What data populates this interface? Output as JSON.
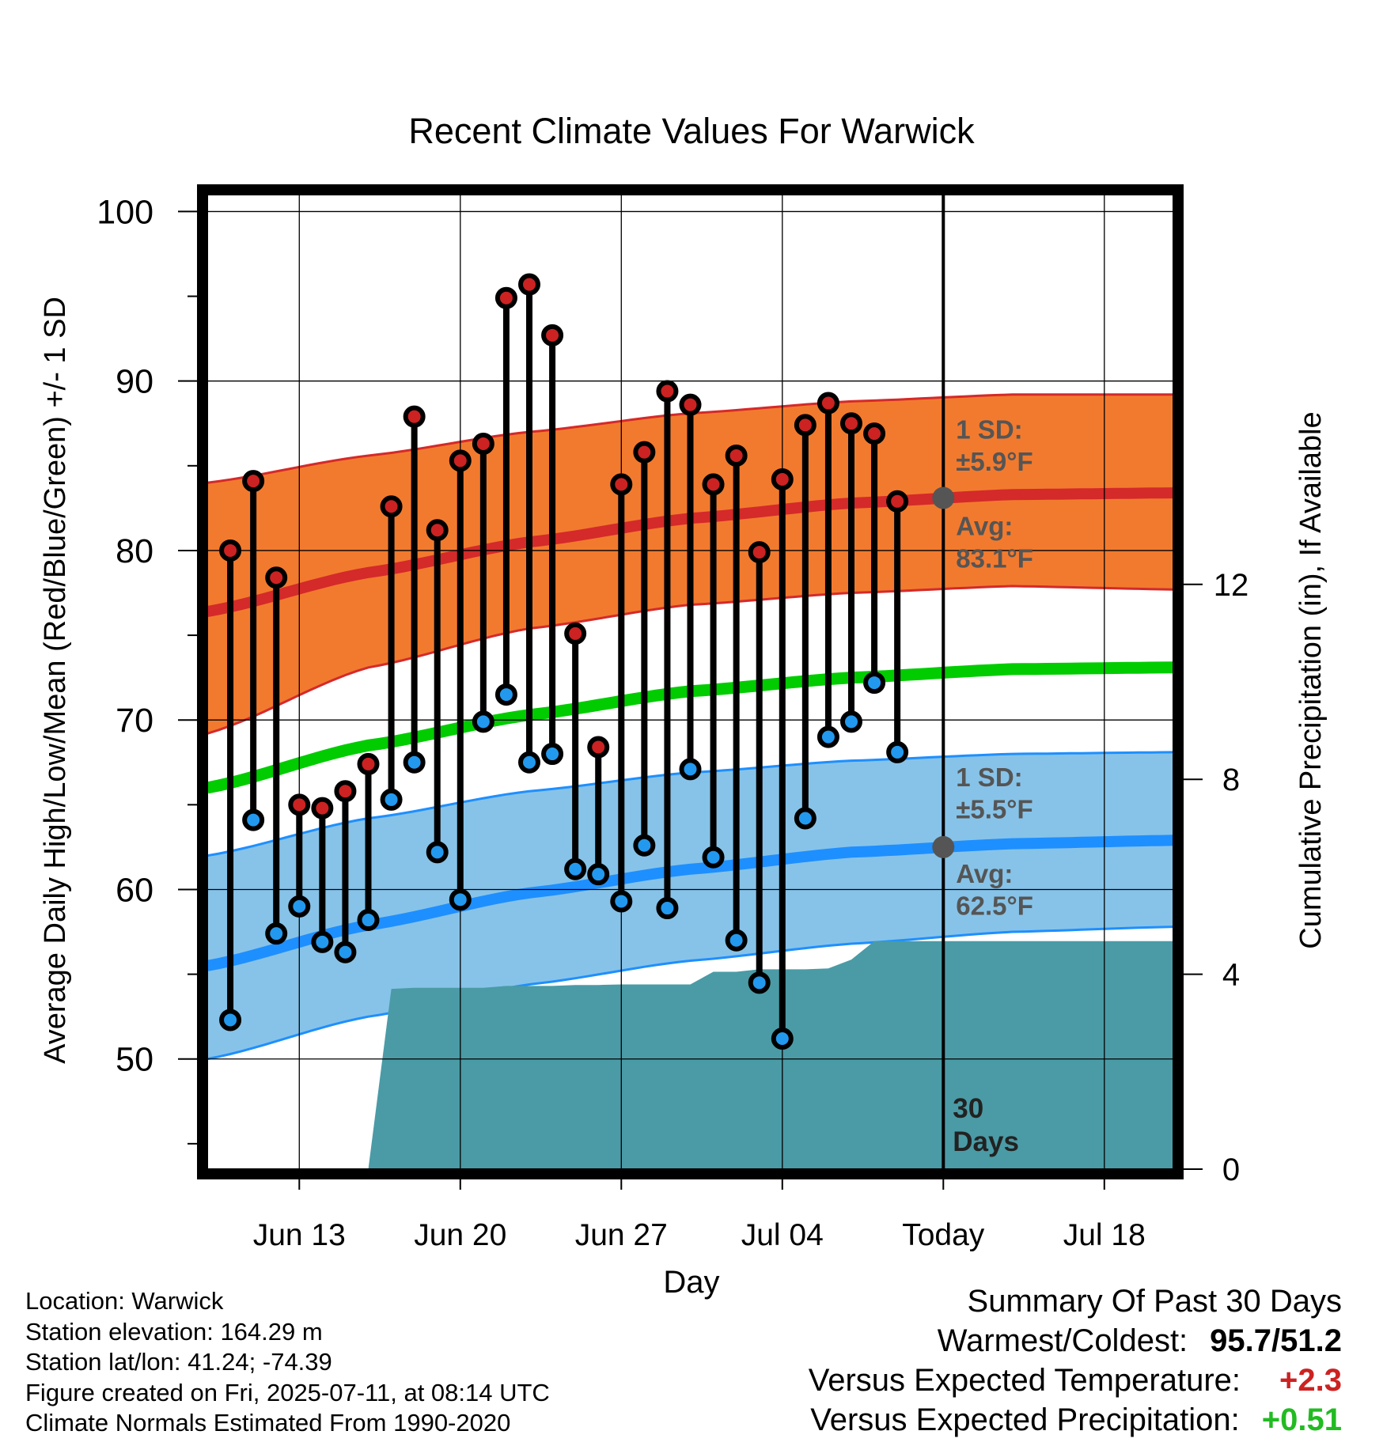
{
  "chart_data": {
    "type": "line",
    "title": "Recent Climate Values For Warwick",
    "xlabel": "Day",
    "ylabel": "Average Daily High/Low/Mean (Red/Blue/Green) +/- 1 SD",
    "ylabel_right": "Cumulative Precipitation (in), If Available",
    "x_tick_labels": [
      "Jun 13",
      "Jun 20",
      "Jun 27",
      "Jul 04",
      "Today",
      "Jul 18"
    ],
    "x_range": [
      "2025-06-09",
      "2025-07-21"
    ],
    "today": "2025-07-11",
    "ylim": [
      43.5,
      101
    ],
    "y_ticks": [
      50,
      60,
      70,
      80,
      90,
      100
    ],
    "y2lim": [
      0,
      20
    ],
    "y2_ticks": [
      0,
      4,
      8,
      12
    ],
    "grid": true,
    "colors": {
      "high_normal": "#d42a2a",
      "high_band": "#f27a2e",
      "low_normal": "#1e8fff",
      "low_band": "#87c3e8",
      "mean_normal": "#00cc00",
      "observed_high": "#cc2222",
      "observed_low": "#2299ee",
      "precip": "#4a9ba6",
      "annotation": "#555555"
    },
    "dates": [
      "2025-06-10",
      "2025-06-11",
      "2025-06-12",
      "2025-06-13",
      "2025-06-14",
      "2025-06-15",
      "2025-06-16",
      "2025-06-17",
      "2025-06-18",
      "2025-06-19",
      "2025-06-20",
      "2025-06-21",
      "2025-06-22",
      "2025-06-23",
      "2025-06-24",
      "2025-06-25",
      "2025-06-26",
      "2025-06-27",
      "2025-06-28",
      "2025-06-29",
      "2025-06-30",
      "2025-07-01",
      "2025-07-02",
      "2025-07-03",
      "2025-07-04",
      "2025-07-05",
      "2025-07-06",
      "2025-07-07",
      "2025-07-08",
      "2025-07-09",
      "2025-07-10"
    ],
    "series": [
      {
        "name": "Observed High",
        "values": [
          80.0,
          84.1,
          78.4,
          65.0,
          64.8,
          65.8,
          67.4,
          82.6,
          87.9,
          81.2,
          85.3,
          86.3,
          94.9,
          95.7,
          92.7,
          75.1,
          68.4,
          83.9,
          85.8,
          89.4,
          88.6,
          83.9,
          85.6,
          79.9,
          84.2,
          87.4,
          88.7,
          87.5,
          86.9,
          82.9,
          null
        ]
      },
      {
        "name": "Observed Low",
        "values": [
          52.3,
          64.1,
          57.4,
          59.0,
          56.9,
          56.3,
          58.2,
          65.3,
          67.5,
          62.2,
          59.4,
          69.9,
          71.5,
          67.5,
          68.0,
          61.2,
          60.9,
          59.3,
          62.6,
          58.9,
          67.1,
          61.9,
          57.0,
          54.5,
          51.2,
          64.2,
          69.0,
          69.9,
          72.2,
          68.1,
          null
        ]
      }
    ],
    "normals": {
      "dates": [
        "2025-06-09",
        "2025-06-16",
        "2025-06-23",
        "2025-06-30",
        "2025-07-07",
        "2025-07-14",
        "2025-07-21"
      ],
      "high_avg": [
        76.4,
        78.7,
        80.5,
        81.9,
        82.8,
        83.3,
        83.4
      ],
      "high_sd_lower": [
        69.2,
        73.1,
        75.4,
        76.8,
        77.5,
        77.9,
        77.7
      ],
      "high_sd_upper": [
        84.0,
        85.6,
        87.0,
        88.1,
        88.8,
        89.2,
        89.2
      ],
      "mean": [
        66.0,
        68.5,
        70.3,
        71.7,
        72.5,
        73.0,
        73.1
      ],
      "low_avg": [
        55.5,
        57.9,
        59.8,
        61.2,
        62.2,
        62.7,
        62.9
      ],
      "low_sd_lower": [
        50.0,
        52.5,
        54.4,
        55.8,
        56.8,
        57.5,
        57.8
      ],
      "low_sd_upper": [
        62.0,
        64.2,
        65.8,
        66.9,
        67.6,
        68.0,
        68.1
      ]
    },
    "precipitation": {
      "dates": [
        "2025-06-16",
        "2025-06-17",
        "2025-06-18",
        "2025-06-19",
        "2025-06-20",
        "2025-06-21",
        "2025-06-22",
        "2025-06-23",
        "2025-06-24",
        "2025-06-25",
        "2025-06-26",
        "2025-06-27",
        "2025-06-28",
        "2025-06-29",
        "2025-06-30",
        "2025-07-01",
        "2025-07-02",
        "2025-07-03",
        "2025-07-04",
        "2025-07-05",
        "2025-07-06",
        "2025-07-07",
        "2025-07-08",
        "2025-07-21"
      ],
      "values": [
        0.0,
        3.7,
        3.72,
        3.72,
        3.72,
        3.72,
        3.76,
        3.76,
        3.76,
        3.78,
        3.78,
        3.79,
        3.79,
        3.79,
        3.79,
        4.05,
        4.05,
        4.1,
        4.1,
        4.1,
        4.12,
        4.3,
        4.68,
        4.68
      ]
    },
    "annotations": {
      "high_sd": "1 SD:",
      "high_sd_value": "±5.9°F",
      "high_avg_label": "Avg:",
      "high_avg_value": "83.1°F",
      "low_sd": "1 SD:",
      "low_sd_value": "±5.5°F",
      "low_avg_label": "Avg:",
      "low_avg_value": "62.5°F",
      "window_days": "30",
      "window_label": "Days",
      "today_high_avg": 83.1,
      "today_low_avg": 62.5
    }
  },
  "info": {
    "location": "Location: Warwick",
    "elevation": "Station elevation: 164.29 m",
    "latlon": "Station lat/lon: 41.24; -74.39",
    "created": "Figure created on Fri, 2025-07-11, at 08:14 UTC",
    "normals": "Climate Normals Estimated From 1990-2020"
  },
  "summary": {
    "title": "Summary Of Past 30 Days",
    "warmest_coldest_label": "Warmest/Coldest:",
    "warmest_coldest_value": "95.7/51.2",
    "temp_label": "Versus Expected Temperature:",
    "temp_value": "+2.3",
    "temp_color": "#cc2222",
    "precip_label": "Versus Expected Precipitation:",
    "precip_value": "+0.51",
    "precip_color": "#22bb22"
  }
}
